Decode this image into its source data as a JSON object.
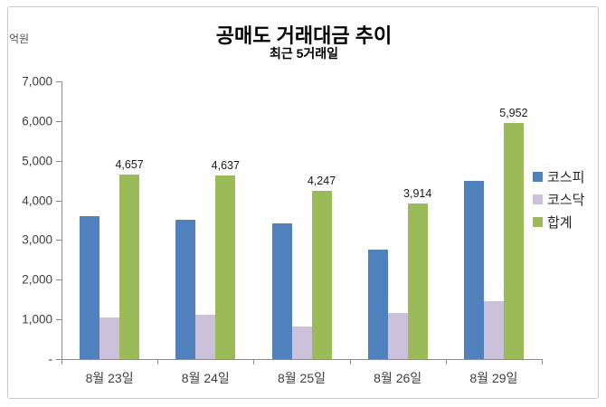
{
  "chart": {
    "title": "공매도 거래대금 추이",
    "subtitle": "최근 5거래일",
    "unit_label": "억원"
  },
  "chart_data": {
    "type": "bar",
    "title": "공매도 거래대금 추이",
    "subtitle": "최근 5거래일",
    "ylabel": "억원",
    "xlabel": "",
    "ylim": [
      0,
      7000
    ],
    "y_tick_interval": 1000,
    "y_tick_labels": [
      "-",
      "1,000",
      "2,000",
      "3,000",
      "4,000",
      "5,000",
      "6,000",
      "7,000"
    ],
    "grid": false,
    "legend_position": "right",
    "categories": [
      "8월 23일",
      "8월 24일",
      "8월 25일",
      "8월 26일",
      "8월 29일"
    ],
    "series": [
      {
        "name": "코스피",
        "color": "#4f81bd",
        "values": [
          3600,
          3520,
          3430,
          2750,
          4500
        ],
        "show_labels": false
      },
      {
        "name": "코스닥",
        "color": "#ccc1da",
        "values": [
          1057,
          1117,
          817,
          1164,
          1452
        ],
        "show_labels": false
      },
      {
        "name": "합계",
        "color": "#9bbb59",
        "values": [
          4657,
          4637,
          4247,
          3914,
          5952
        ],
        "show_labels": true,
        "data_labels": [
          "4,657",
          "4,637",
          "4,247",
          "3,914",
          "5,952"
        ]
      }
    ]
  },
  "colors": {
    "axis": "#8c8c8c",
    "tick_text": "#3f3f3f",
    "title_text": "#000000",
    "border": "#c9c9c9"
  }
}
